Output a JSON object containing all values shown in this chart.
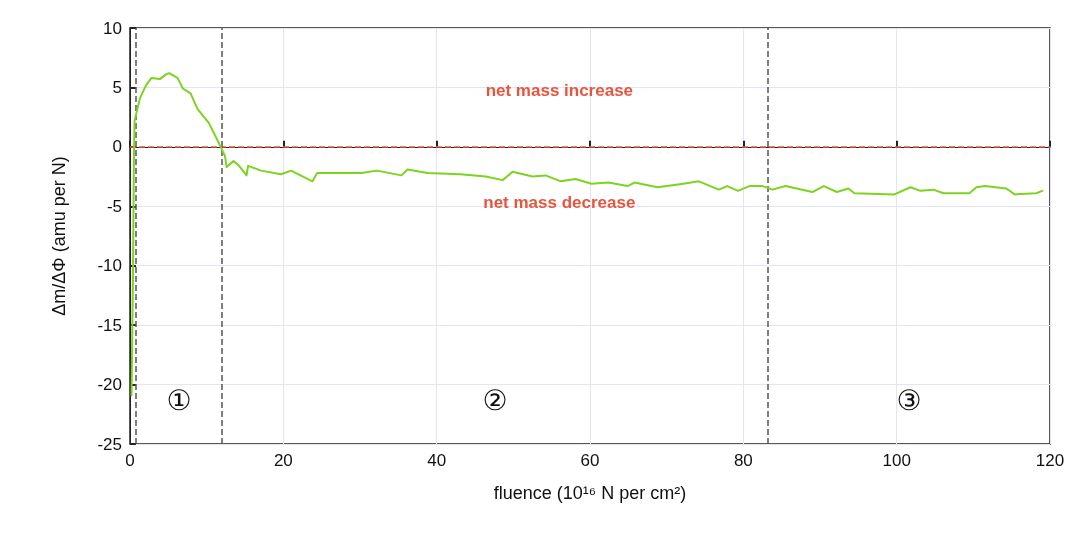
{
  "chart_data": {
    "type": "line",
    "xlabel": "fluence (10¹⁶ N per cm²)",
    "ylabel": "Δm/ΔΦ (amu per N)",
    "xlim": [
      0,
      120
    ],
    "xticks": [
      0,
      20,
      40,
      60,
      80,
      100,
      120
    ],
    "ylim": [
      -25,
      10
    ],
    "yticks": [
      -25,
      -20,
      -15,
      -10,
      -5,
      0,
      5,
      10
    ],
    "grid": true,
    "marker": "none",
    "line_style": "solid",
    "series": [
      {
        "color": "#7ed321",
        "x": [
          0.2,
          0.4,
          0.5,
          0.6,
          1.3,
          2.1,
          2.8,
          3.9,
          4.7,
          5.1,
          6.2,
          6.9,
          7.9,
          8.8,
          10.3,
          11.6,
          12.4,
          12.6,
          13.5,
          14.1,
          15.2,
          15.4,
          17.1,
          19.7,
          21.0,
          23.8,
          24.4,
          28.7,
          30.2,
          32.2,
          35.4,
          36.2,
          38.8,
          43.1,
          46.4,
          48.6,
          49.9,
          52.5,
          54.2,
          56.2,
          58.1,
          60.2,
          62.4,
          64.9,
          65.8,
          68.8,
          72.2,
          74.2,
          76.8,
          77.9,
          79.3,
          80.8,
          82.5,
          83.8,
          85.5,
          89.0,
          90.5,
          92.2,
          93.7,
          94.5,
          99.7,
          101.8,
          103.1,
          104.8,
          106.1,
          109.5,
          110.4,
          111.5,
          114.3,
          115.4,
          118.2,
          119.0
        ],
        "values": [
          -20.9,
          -10.1,
          -1.3,
          2.2,
          4.1,
          5.2,
          5.8,
          5.7,
          6.1,
          6.2,
          5.8,
          4.9,
          4.5,
          3.2,
          2.0,
          0.3,
          -0.8,
          -1.7,
          -1.2,
          -1.5,
          -2.4,
          -1.6,
          -2.0,
          -2.3,
          -2.0,
          -2.9,
          -2.2,
          -2.2,
          -2.2,
          -2.0,
          -2.4,
          -1.9,
          -2.2,
          -2.3,
          -2.5,
          -2.8,
          -2.1,
          -2.5,
          -2.4,
          -2.9,
          -2.7,
          -3.1,
          -3.0,
          -3.3,
          -3.0,
          -3.4,
          -3.1,
          -2.9,
          -3.6,
          -3.3,
          -3.7,
          -3.3,
          -3.3,
          -3.6,
          -3.3,
          -3.8,
          -3.3,
          -3.8,
          -3.5,
          -3.9,
          -4.0,
          -3.4,
          -3.7,
          -3.6,
          -3.9,
          -3.9,
          -3.4,
          -3.3,
          -3.5,
          -4.0,
          -3.9,
          -3.7
        ]
      }
    ],
    "ref_lines": [
      {
        "axis": "y",
        "value": 0,
        "color": "#e8553e",
        "line_style": "dashed"
      },
      {
        "axis": "x",
        "value": 0.8,
        "color": "#555555",
        "line_style": "dashed"
      },
      {
        "axis": "x",
        "value": 12,
        "color": "#555555",
        "line_style": "dashed"
      },
      {
        "axis": "x",
        "value": 83.2,
        "color": "#555555",
        "line_style": "dashed"
      }
    ],
    "annotations": [
      "net mass increase",
      "net mass decrease",
      "①",
      "②",
      "③"
    ]
  }
}
